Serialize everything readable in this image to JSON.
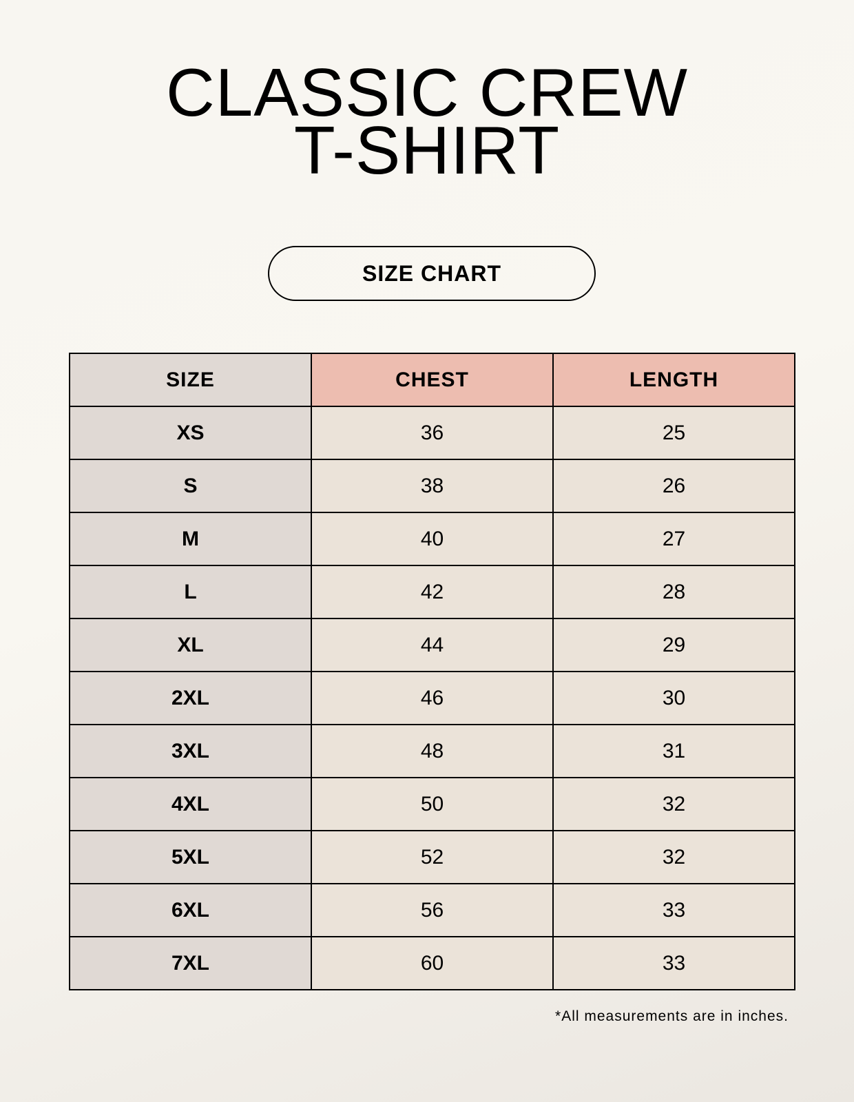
{
  "title": {
    "line1": "CLASSIC CREW",
    "line2": "T-SHIRT"
  },
  "badge": "SIZE CHART",
  "table": {
    "headers": [
      "SIZE",
      "CHEST",
      "LENGTH"
    ],
    "rows": [
      [
        "XS",
        "36",
        "25"
      ],
      [
        "S",
        "38",
        "26"
      ],
      [
        "M",
        "40",
        "27"
      ],
      [
        "L",
        "42",
        "28"
      ],
      [
        "XL",
        "44",
        "29"
      ],
      [
        "2XL",
        "46",
        "30"
      ],
      [
        "3XL",
        "48",
        "31"
      ],
      [
        "4XL",
        "50",
        "32"
      ],
      [
        "5XL",
        "52",
        "32"
      ],
      [
        "6XL",
        "56",
        "33"
      ],
      [
        "7XL",
        "60",
        "33"
      ]
    ]
  },
  "footnote": "*All measurements are in inches.",
  "colors": {
    "size_column": "#e0d9d4",
    "header_accent": "#edbdb0",
    "value_cells": "#ebe3d9"
  }
}
